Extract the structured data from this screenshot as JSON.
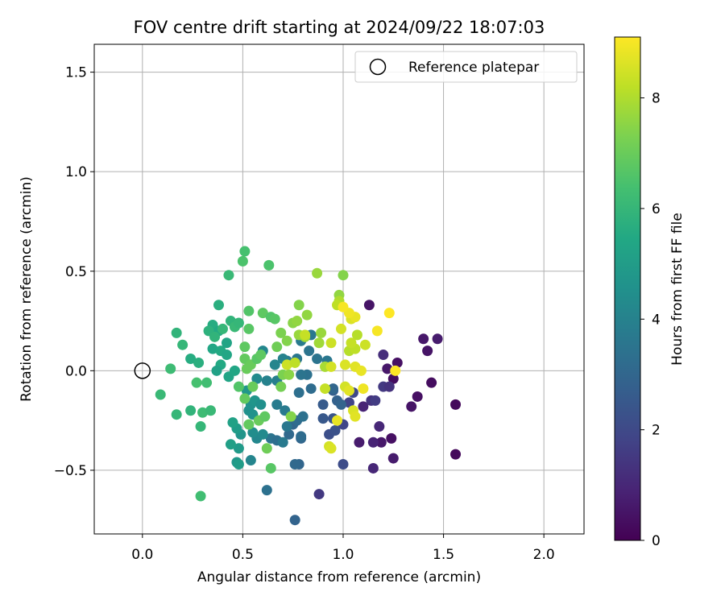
{
  "chart_data": {
    "type": "scatter",
    "title": "FOV centre drift starting at 2024/09/22 18:07:03",
    "xlabel": "Angular distance from reference (arcmin)",
    "ylabel": "Rotation from reference (arcmin)",
    "xlim": [
      -0.24,
      2.2
    ],
    "ylim": [
      -0.82,
      1.64
    ],
    "xticks": [
      0.0,
      0.5,
      1.0,
      1.5,
      2.0
    ],
    "xtick_labels": [
      "0.0",
      "0.5",
      "1.0",
      "1.5",
      "2.0"
    ],
    "yticks": [
      -0.5,
      0.0,
      0.5,
      1.0,
      1.5
    ],
    "ytick_labels": [
      "−0.5",
      "0.0",
      "0.5",
      "1.0",
      "1.5"
    ],
    "grid": true,
    "legend": {
      "position": "top-right",
      "label": "Reference platepar",
      "marker": "open-circle"
    },
    "reference_point": {
      "x": 0.0,
      "y": 0.0
    },
    "colorbar": {
      "label": "Hours from first FF file",
      "range": [
        0,
        9.1
      ],
      "ticks": [
        0,
        2,
        4,
        6,
        8
      ],
      "tick_labels": [
        "0",
        "2",
        "4",
        "6",
        "8"
      ],
      "colormap": "viridis"
    },
    "points": [
      [
        1.13,
        0.33,
        0.5
      ],
      [
        1.22,
        0.01,
        0.6
      ],
      [
        1.25,
        -0.04,
        0.3
      ],
      [
        1.27,
        0.04,
        0.4
      ],
      [
        1.19,
        -0.36,
        0.6
      ],
      [
        1.15,
        -0.36,
        0.9
      ],
      [
        1.24,
        -0.34,
        0.4
      ],
      [
        1.25,
        -0.44,
        0.7
      ],
      [
        1.15,
        -0.49,
        1.0
      ],
      [
        1.18,
        -0.28,
        1.0
      ],
      [
        1.2,
        0.08,
        1.2
      ],
      [
        1.2,
        -0.08,
        1.5
      ],
      [
        1.23,
        -0.08,
        1.3
      ],
      [
        1.4,
        0.16,
        0.6
      ],
      [
        1.42,
        0.1,
        0.5
      ],
      [
        1.47,
        0.16,
        0.7
      ],
      [
        1.37,
        -0.13,
        0.4
      ],
      [
        1.34,
        -0.18,
        0.5
      ],
      [
        1.44,
        -0.06,
        0.3
      ],
      [
        1.56,
        -0.17,
        0.2
      ],
      [
        1.56,
        -0.42,
        0.2
      ],
      [
        1.08,
        -0.36,
        0.7
      ],
      [
        1.1,
        -0.18,
        0.9
      ],
      [
        1.14,
        -0.15,
        1.3
      ],
      [
        1.16,
        -0.15,
        1.6
      ],
      [
        0.88,
        -0.62,
        1.5
      ],
      [
        1.0,
        -0.47,
        2.1
      ],
      [
        1.0,
        -0.27,
        1.9
      ],
      [
        1.03,
        -0.16,
        1.8
      ],
      [
        1.05,
        -0.11,
        2.0
      ],
      [
        0.93,
        -0.32,
        2.2
      ],
      [
        0.96,
        -0.3,
        2.3
      ],
      [
        0.9,
        -0.24,
        2.5
      ],
      [
        0.95,
        -0.24,
        2.4
      ],
      [
        0.9,
        -0.17,
        2.6
      ],
      [
        0.95,
        -0.1,
        2.7
      ],
      [
        0.97,
        -0.15,
        2.8
      ],
      [
        0.99,
        -0.17,
        2.9
      ],
      [
        0.95,
        -0.09,
        3.0
      ],
      [
        0.76,
        -0.75,
        2.9
      ],
      [
        0.78,
        -0.47,
        3.0
      ],
      [
        0.76,
        -0.47,
        3.1
      ],
      [
        0.79,
        -0.34,
        3.0
      ],
      [
        0.79,
        -0.33,
        3.2
      ],
      [
        0.73,
        -0.32,
        3.1
      ],
      [
        0.75,
        -0.27,
        3.0
      ],
      [
        0.77,
        -0.25,
        3.2
      ],
      [
        0.8,
        -0.23,
        3.4
      ],
      [
        0.78,
        -0.11,
        3.3
      ],
      [
        0.84,
        -0.09,
        3.2
      ],
      [
        0.82,
        -0.02,
        3.4
      ],
      [
        0.87,
        0.06,
        3.5
      ],
      [
        0.92,
        0.05,
        3.6
      ],
      [
        0.83,
        0.1,
        3.5
      ],
      [
        0.84,
        0.18,
        3.6
      ],
      [
        0.79,
        0.15,
        3.7
      ],
      [
        0.77,
        0.06,
        3.6
      ],
      [
        0.79,
        -0.02,
        3.5
      ],
      [
        0.72,
        0.05,
        3.8
      ],
      [
        0.62,
        -0.6,
        3.4
      ],
      [
        0.64,
        -0.34,
        3.5
      ],
      [
        0.67,
        -0.35,
        3.3
      ],
      [
        0.7,
        -0.36,
        3.7
      ],
      [
        0.72,
        -0.28,
        3.6
      ],
      [
        0.67,
        -0.17,
        3.8
      ],
      [
        0.71,
        -0.2,
        3.7
      ],
      [
        0.67,
        -0.05,
        3.9
      ],
      [
        0.62,
        -0.05,
        4.0
      ],
      [
        0.66,
        0.03,
        4.1
      ],
      [
        0.7,
        0.06,
        4.0
      ],
      [
        0.6,
        0.1,
        4.2
      ],
      [
        0.57,
        -0.04,
        4.3
      ],
      [
        0.54,
        -0.45,
        4.1
      ],
      [
        0.57,
        -0.34,
        4.2
      ],
      [
        0.6,
        -0.32,
        4.3
      ],
      [
        0.55,
        -0.31,
        4.4
      ],
      [
        0.53,
        -0.2,
        4.5
      ],
      [
        0.55,
        -0.22,
        4.6
      ],
      [
        0.54,
        -0.17,
        4.6
      ],
      [
        0.56,
        -0.15,
        4.7
      ],
      [
        0.59,
        -0.17,
        4.5
      ],
      [
        0.52,
        -0.1,
        4.8
      ],
      [
        0.49,
        -0.32,
        4.7
      ],
      [
        0.48,
        -0.39,
        4.9
      ],
      [
        0.47,
        -0.46,
        4.8
      ],
      [
        0.48,
        -0.47,
        5.0
      ],
      [
        0.44,
        -0.37,
        5.1
      ],
      [
        0.47,
        -0.29,
        5.0
      ],
      [
        0.45,
        -0.26,
        5.2
      ],
      [
        0.43,
        -0.03,
        5.3
      ],
      [
        0.46,
        0.0,
        5.4
      ],
      [
        0.39,
        0.03,
        5.5
      ],
      [
        0.37,
        0.0,
        5.2
      ],
      [
        0.35,
        0.11,
        5.4
      ],
      [
        0.39,
        0.1,
        5.5
      ],
      [
        0.42,
        0.14,
        5.3
      ],
      [
        0.35,
        0.23,
        5.6
      ],
      [
        0.38,
        0.2,
        5.5
      ],
      [
        0.38,
        0.33,
        5.7
      ],
      [
        0.42,
        0.08,
        5.4
      ],
      [
        0.24,
        0.06,
        5.6
      ],
      [
        0.28,
        0.04,
        5.7
      ],
      [
        0.33,
        0.2,
        5.8
      ],
      [
        0.36,
        0.17,
        5.9
      ],
      [
        0.4,
        0.21,
        6.0
      ],
      [
        0.44,
        0.25,
        5.9
      ],
      [
        0.46,
        0.22,
        6.1
      ],
      [
        0.48,
        0.24,
        6.0
      ],
      [
        0.43,
        0.48,
        6.1
      ],
      [
        0.17,
        0.19,
        5.9
      ],
      [
        0.2,
        0.13,
        6.0
      ],
      [
        0.14,
        0.01,
        6.2
      ],
      [
        0.09,
        -0.12,
        6.1
      ],
      [
        0.17,
        -0.22,
        6.0
      ],
      [
        0.24,
        -0.2,
        5.9
      ],
      [
        0.3,
        -0.21,
        6.2
      ],
      [
        0.34,
        -0.2,
        6.1
      ],
      [
        0.32,
        -0.06,
        6.3
      ],
      [
        0.27,
        -0.06,
        6.4
      ],
      [
        0.29,
        -0.28,
        6.0
      ],
      [
        0.29,
        -0.63,
        6.3
      ],
      [
        0.5,
        0.55,
        6.5
      ],
      [
        0.51,
        0.6,
        6.4
      ],
      [
        0.63,
        0.53,
        6.5
      ],
      [
        0.53,
        0.3,
        6.6
      ],
      [
        0.53,
        0.21,
        6.7
      ],
      [
        0.6,
        0.29,
        6.8
      ],
      [
        0.64,
        0.27,
        6.6
      ],
      [
        0.66,
        0.26,
        6.7
      ],
      [
        0.51,
        0.12,
        6.8
      ],
      [
        0.51,
        0.06,
        6.9
      ],
      [
        0.52,
        0.01,
        7.0
      ],
      [
        0.54,
        0.03,
        7.0
      ],
      [
        0.57,
        0.06,
        6.7
      ],
      [
        0.59,
        0.08,
        6.8
      ],
      [
        0.48,
        -0.08,
        6.6
      ],
      [
        0.51,
        -0.14,
        6.9
      ],
      [
        0.55,
        -0.08,
        7.0
      ],
      [
        0.53,
        -0.27,
        6.9
      ],
      [
        0.58,
        -0.25,
        7.0
      ],
      [
        0.62,
        -0.39,
        7.1
      ],
      [
        0.64,
        -0.49,
        6.7
      ],
      [
        0.61,
        -0.23,
        6.8
      ],
      [
        0.67,
        0.12,
        7.1
      ],
      [
        0.69,
        0.19,
        7.3
      ],
      [
        0.72,
        0.15,
        7.4
      ],
      [
        0.75,
        0.24,
        7.5
      ],
      [
        0.78,
        0.33,
        7.4
      ],
      [
        0.77,
        0.25,
        7.6
      ],
      [
        0.69,
        -0.08,
        7.2
      ],
      [
        0.7,
        -0.02,
        7.3
      ],
      [
        0.73,
        -0.02,
        7.5
      ],
      [
        0.74,
        -0.23,
        7.4
      ],
      [
        0.78,
        0.18,
        7.7
      ],
      [
        0.81,
        0.17,
        7.8
      ],
      [
        0.82,
        0.28,
        7.6
      ],
      [
        0.87,
        0.49,
        7.7
      ],
      [
        0.88,
        0.14,
        7.8
      ],
      [
        0.89,
        0.19,
        7.7
      ],
      [
        1.0,
        0.48,
        7.4
      ],
      [
        0.98,
        0.38,
        7.6
      ],
      [
        0.91,
        0.02,
        7.9
      ],
      [
        0.98,
        0.35,
        8.0
      ],
      [
        0.97,
        0.33,
        8.2
      ],
      [
        1.03,
        0.1,
        8.1
      ],
      [
        1.06,
        0.11,
        8.2
      ],
      [
        1.07,
        0.18,
        8.1
      ],
      [
        1.04,
        0.14,
        8.3
      ],
      [
        1.11,
        0.13,
        8.4
      ],
      [
        0.94,
        0.14,
        8.4
      ],
      [
        0.91,
        -0.09,
        8.3
      ],
      [
        0.94,
        0.02,
        8.5
      ],
      [
        1.01,
        0.03,
        8.6
      ],
      [
        1.06,
        0.02,
        8.7
      ],
      [
        1.09,
        0.0,
        8.8
      ],
      [
        1.01,
        -0.08,
        8.5
      ],
      [
        1.03,
        -0.1,
        8.7
      ],
      [
        0.99,
        0.21,
        8.5
      ],
      [
        1.04,
        0.26,
        8.6
      ],
      [
        1.06,
        0.27,
        8.8
      ],
      [
        1.03,
        0.29,
        8.9
      ],
      [
        1.0,
        0.32,
        9.0
      ],
      [
        1.17,
        0.2,
        9.0
      ],
      [
        1.23,
        0.29,
        9.1
      ],
      [
        1.26,
        0.0,
        9.1
      ],
      [
        1.1,
        -0.09,
        8.9
      ],
      [
        1.05,
        -0.2,
        8.6
      ],
      [
        1.06,
        -0.23,
        8.7
      ],
      [
        0.97,
        -0.25,
        8.8
      ],
      [
        0.93,
        -0.38,
        8.5
      ],
      [
        0.94,
        -0.39,
        8.6
      ],
      [
        0.72,
        0.03,
        8.4
      ],
      [
        0.76,
        0.04,
        8.2
      ],
      [
        0.81,
        0.18,
        8.3
      ]
    ]
  }
}
